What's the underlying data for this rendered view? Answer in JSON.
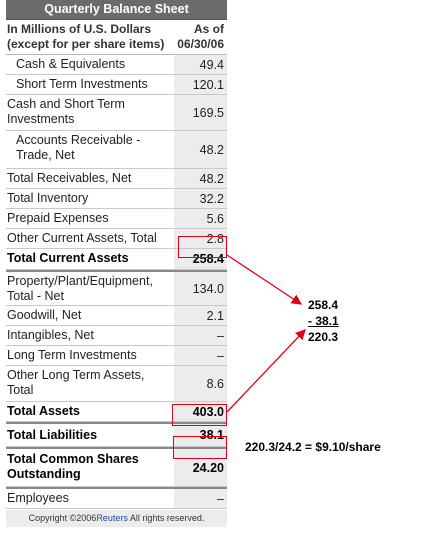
{
  "title": "Quarterly Balance Sheet",
  "header": {
    "label_line1": "In Millions of U.S. Dollars",
    "label_line2": "(except for per share items)",
    "date_line1": "As of",
    "date_line2": "06/30/06"
  },
  "rows": [
    {
      "label": "Cash & Equivalents",
      "value": "49.4"
    },
    {
      "label": "Short Term Investments",
      "value": "120.1"
    },
    {
      "label_line1": "Cash and Short Term",
      "label_line2": "Investments",
      "value": "169.5"
    },
    {
      "label_line1": "Accounts Receivable -",
      "label_line2": "Trade, Net",
      "value": "48.2"
    },
    {
      "label": "Total Receivables, Net",
      "value": "48.2"
    },
    {
      "label": "Total Inventory",
      "value": "32.2"
    },
    {
      "label": "Prepaid Expenses",
      "value": "5.6"
    },
    {
      "label": "Other Current Assets, Total",
      "value": "2.8"
    },
    {
      "label": "Total Current Assets",
      "value": "258.4"
    },
    {
      "label_line1": "Property/Plant/Equipment,",
      "label_line2": "Total - Net",
      "value": "134.0"
    },
    {
      "label": "Goodwill, Net",
      "value": "2.1"
    },
    {
      "label": "Intangibles, Net",
      "value": "–"
    },
    {
      "label": "Long Term Investments",
      "value": "–"
    },
    {
      "label_line1": "Other Long Term Assets,",
      "label_line2": "Total",
      "value": "8.6"
    },
    {
      "label": "Total Assets",
      "value": "403.0"
    },
    {
      "label": "Total Liabilities",
      "value": "38.1"
    },
    {
      "label_line1": "Total Common Shares",
      "label_line2": "Outstanding",
      "value": "24.20"
    },
    {
      "label": "Employees",
      "value": "–"
    }
  ],
  "footer": {
    "prefix": "Copyright ©2006",
    "brand": "Reuters",
    "suffix": " All rights reserved."
  },
  "annotation": {
    "line1": "258.4",
    "line2": "- 38.1",
    "line3": "220.3",
    "per_share": "220.3/24.2 = $9.10/share"
  },
  "colors": {
    "title_bg": "#6b6b6b",
    "value_bg": "#ececec",
    "highlight": "#e0001b",
    "brand": "#1f47a8"
  }
}
